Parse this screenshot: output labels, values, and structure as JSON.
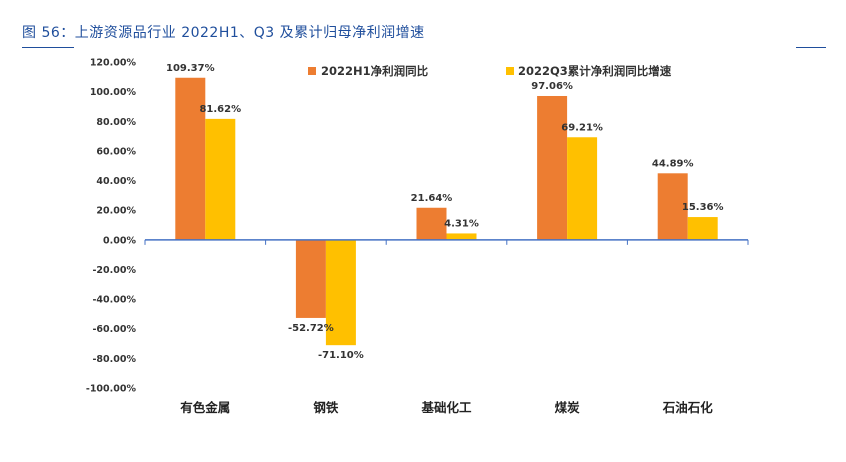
{
  "figure": {
    "title": "图 56：上游资源品行业 2022H1、Q3 及累计归母净利润增速"
  },
  "colors": {
    "title": "#1f4e9c",
    "series1": "#ED7D31",
    "series2": "#FFC000",
    "axis": "#4472C4"
  },
  "chart_data": {
    "type": "bar",
    "title": "",
    "xlabel": "",
    "ylabel": "",
    "ylim": [
      -100,
      120
    ],
    "ytick_step": 20,
    "yticks": [
      "120.00%",
      "100.00%",
      "80.00%",
      "60.00%",
      "40.00%",
      "20.00%",
      "0.00%",
      "-20.00%",
      "-40.00%",
      "-60.00%",
      "-80.00%",
      "-100.00%"
    ],
    "grid": false,
    "legend_position": "top",
    "categories": [
      "有色金属",
      "钢铁",
      "基础化工",
      "煤炭",
      "石油石化"
    ],
    "series": [
      {
        "name": "2022H1净利润同比",
        "values": [
          109.37,
          -52.72,
          21.64,
          97.06,
          44.89
        ],
        "labels": [
          "109.37%",
          "-52.72%",
          "21.64%",
          "97.06%",
          "44.89%"
        ]
      },
      {
        "name": "2022Q3累计净利润同比增速",
        "values": [
          81.62,
          -71.1,
          4.31,
          69.21,
          15.36
        ],
        "labels": [
          "81.62%",
          "-71.10%",
          "4.31%",
          "69.21%",
          "15.36%"
        ]
      }
    ]
  }
}
